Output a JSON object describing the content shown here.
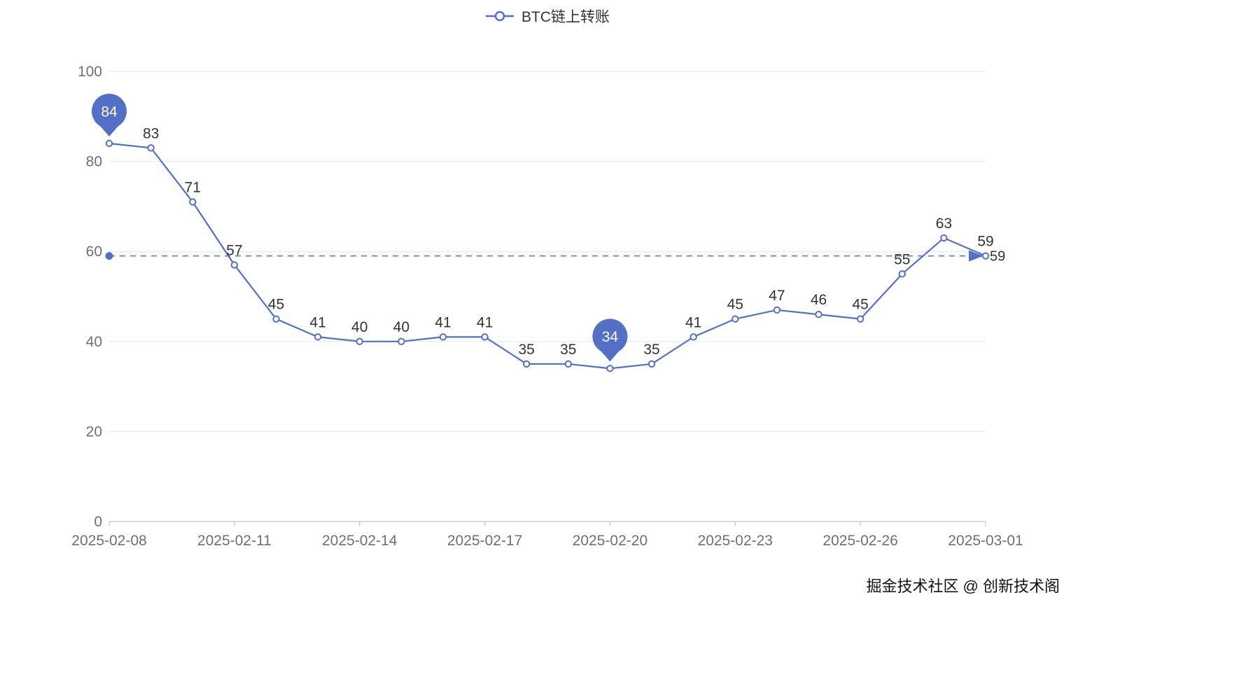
{
  "legend": {
    "label": "BTC链上转账"
  },
  "watermark": "掘金技术社区 @ 创新技术阁",
  "chart_data": {
    "type": "line",
    "title": "",
    "series_name": "BTC链上转账",
    "x": [
      "2025-02-08",
      "2025-02-09",
      "2025-02-10",
      "2025-02-11",
      "2025-02-12",
      "2025-02-13",
      "2025-02-14",
      "2025-02-15",
      "2025-02-16",
      "2025-02-17",
      "2025-02-18",
      "2025-02-19",
      "2025-02-20",
      "2025-02-21",
      "2025-02-22",
      "2025-02-23",
      "2025-02-24",
      "2025-02-25",
      "2025-02-26",
      "2025-02-27",
      "2025-02-28",
      "2025-03-01"
    ],
    "values": [
      84,
      83,
      71,
      57,
      45,
      41,
      40,
      40,
      41,
      41,
      35,
      35,
      34,
      35,
      41,
      45,
      47,
      46,
      45,
      55,
      63,
      59
    ],
    "x_tick_indices": [
      0,
      3,
      6,
      9,
      12,
      15,
      18,
      21
    ],
    "x_tick_labels": [
      "2025-02-08",
      "2025-02-11",
      "2025-02-14",
      "2025-02-17",
      "2025-02-20",
      "2025-02-23",
      "2025-02-26",
      "2025-03-01"
    ],
    "y_ticks": [
      0,
      20,
      40,
      60,
      80,
      100
    ],
    "ylim": [
      0,
      100
    ],
    "grid": true,
    "legend_position": "top-center",
    "line_color": "#5470c6",
    "label_color": "#333333",
    "axis_label_color": "#6e7079",
    "grid_color": "#e0e6f1",
    "axis_line_color": "#cccccc",
    "mark_max": {
      "index": 0,
      "label": "84"
    },
    "mark_min": {
      "index": 12,
      "label": "34"
    },
    "mark_line": {
      "value": 59,
      "label": "59"
    }
  }
}
